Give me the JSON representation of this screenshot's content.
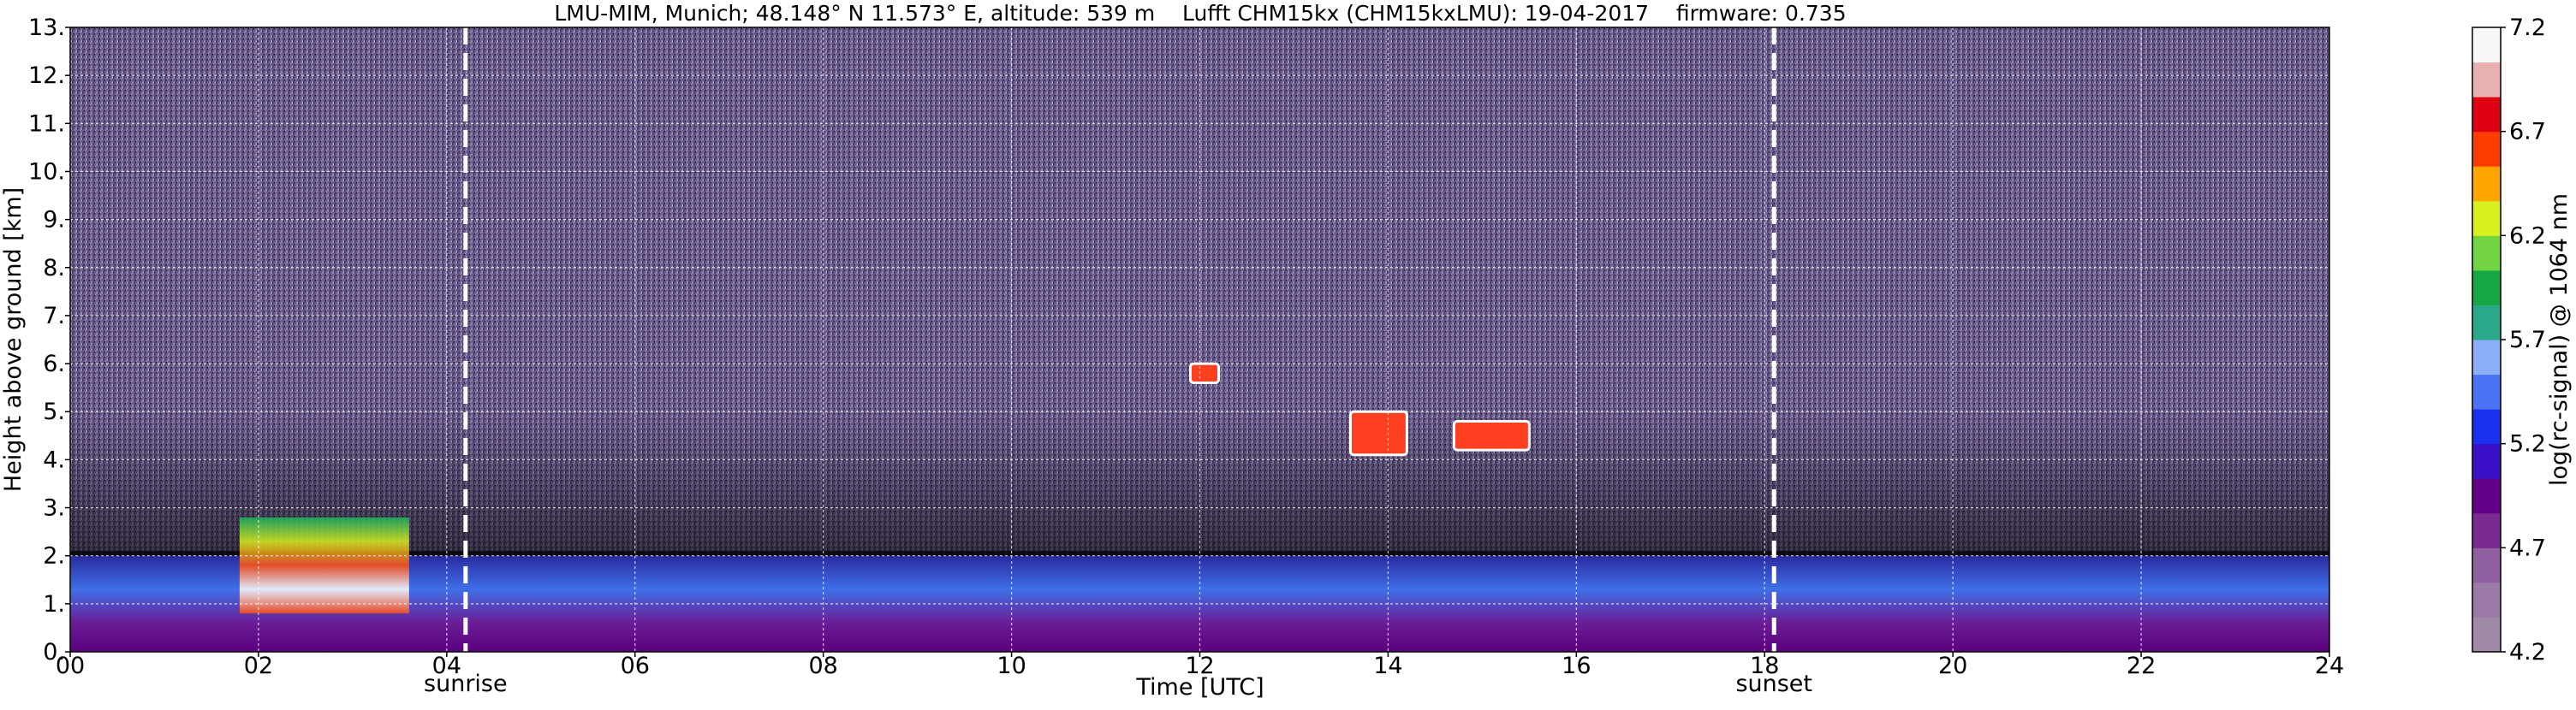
{
  "chart_data": {
    "type": "heatmap",
    "title": "LMU-MIM, Munich; 48.148° N 11.573° E, altitude: 539 m    Lufft CHM15kx (CHM15kxLMU): 19-04-2017    firmware: 0.735",
    "xlabel": "Time [UTC]",
    "ylabel": "Height above ground [km]",
    "xlim": [
      0,
      24
    ],
    "ylim": [
      0,
      13
    ],
    "x_ticks": [
      "00",
      "02",
      "04",
      "06",
      "08",
      "10",
      "12",
      "14",
      "16",
      "18",
      "20",
      "22",
      "24"
    ],
    "y_ticks": [
      "0.",
      "1.",
      "2.",
      "3.",
      "4.",
      "5.",
      "6.",
      "7.",
      "8.",
      "9.",
      "10.",
      "11.",
      "12.",
      "13."
    ],
    "grid": true,
    "colorbar": {
      "label": "log(rc-signal) @ 1064 nm",
      "range": [
        4.2,
        7.2
      ],
      "ticks": [
        "4.2",
        "4.7",
        "5.2",
        "5.7",
        "6.2",
        "6.7",
        "7.2"
      ],
      "colors": [
        "#a08aa8",
        "#9c7aa6",
        "#8f5fa0",
        "#7a2b92",
        "#65008a",
        "#3a10c8",
        "#1c30f0",
        "#4b74f5",
        "#8aaff8",
        "#29a88a",
        "#17a845",
        "#72d440",
        "#d8f020",
        "#ffa500",
        "#ff3c00",
        "#dd0010",
        "#e8b0b0",
        "#f8f8f8"
      ]
    },
    "markers": [
      {
        "label": "sunrise",
        "time": 4.2
      },
      {
        "label": "sunset",
        "time": 18.1
      }
    ],
    "features": [
      {
        "type": "boundary layer aerosol",
        "start": 0,
        "end": 24,
        "height_km": [
          0,
          2
        ]
      },
      {
        "type": "elevated aerosol layer",
        "start": 1.8,
        "end": 3.6,
        "height_km": [
          0.8,
          2.8
        ]
      },
      {
        "type": "cloud",
        "start": 11.9,
        "end": 12.2,
        "height_km": [
          5.6,
          6
        ]
      },
      {
        "type": "cloud",
        "start": 13.6,
        "end": 14.2,
        "height_km": [
          4.1,
          5
        ]
      },
      {
        "type": "cloud",
        "start": 14.7,
        "end": 15.5,
        "height_km": [
          4.2,
          4.8
        ]
      }
    ]
  }
}
